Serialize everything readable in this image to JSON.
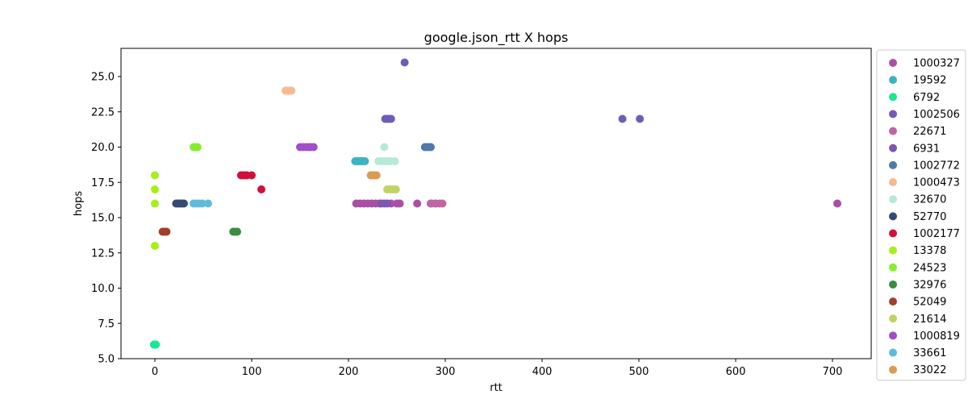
{
  "chart_data": {
    "type": "scatter",
    "title": "google.json_rtt X hops",
    "xlabel": "rtt",
    "ylabel": "hops",
    "xlim": [
      -35,
      740
    ],
    "ylim": [
      5.0,
      27.0
    ],
    "xticks": [
      0,
      100,
      200,
      300,
      400,
      500,
      600,
      700
    ],
    "xtick_labels": [
      "0",
      "100",
      "200",
      "300",
      "400",
      "500",
      "600",
      "700"
    ],
    "yticks": [
      5.0,
      7.5,
      10.0,
      12.5,
      15.0,
      17.5,
      20.0,
      22.5,
      25.0
    ],
    "ytick_labels": [
      "5.0",
      "7.5",
      "10.0",
      "12.5",
      "15.0",
      "17.5",
      "20.0",
      "22.5",
      "25.0"
    ],
    "grid": false,
    "legend_position": "outside-right",
    "series": [
      {
        "name": "1000327",
        "color": "#aa4fa5",
        "points": [
          [
            208,
            16
          ],
          [
            212,
            16
          ],
          [
            216,
            16
          ],
          [
            220,
            16
          ],
          [
            224,
            16
          ],
          [
            228,
            16
          ],
          [
            232,
            16
          ],
          [
            244,
            16
          ],
          [
            250,
            16
          ],
          [
            253,
            16
          ],
          [
            271,
            16
          ],
          [
            285,
            16
          ],
          [
            290,
            16
          ],
          [
            705,
            16
          ]
        ]
      },
      {
        "name": "19592",
        "color": "#3bb3c3",
        "points": [
          [
            207,
            19
          ],
          [
            209,
            19
          ],
          [
            211,
            19
          ],
          [
            213,
            19
          ],
          [
            215,
            19
          ],
          [
            217,
            19
          ]
        ]
      },
      {
        "name": "6792",
        "color": "#19e894",
        "points": [
          [
            -1,
            6
          ],
          [
            0,
            6
          ],
          [
            1,
            6
          ]
        ]
      },
      {
        "name": "1002506",
        "color": "#6f5cb8",
        "points": [
          [
            238,
            22
          ],
          [
            240,
            22
          ],
          [
            242,
            22
          ],
          [
            244,
            22
          ],
          [
            258,
            26
          ],
          [
            483,
            22
          ],
          [
            501,
            22
          ]
        ]
      },
      {
        "name": "22671",
        "color": "#c065a1",
        "points": [
          [
            286,
            16
          ],
          [
            290,
            16
          ],
          [
            294,
            16
          ],
          [
            297,
            16
          ]
        ]
      },
      {
        "name": "6931",
        "color": "#7d57b0",
        "points": [
          [
            234,
            16
          ],
          [
            237,
            16
          ],
          [
            240,
            16
          ]
        ]
      },
      {
        "name": "1002772",
        "color": "#4f79a9",
        "points": [
          [
            279,
            20
          ],
          [
            281,
            20
          ],
          [
            283,
            20
          ],
          [
            285,
            20
          ]
        ]
      },
      {
        "name": "1000473",
        "color": "#f8b98f",
        "points": [
          [
            135,
            24
          ],
          [
            137,
            24
          ],
          [
            139,
            24
          ],
          [
            141,
            24
          ]
        ]
      },
      {
        "name": "32670",
        "color": "#b5ead5",
        "points": [
          [
            237,
            20
          ],
          [
            231,
            19
          ],
          [
            234,
            19
          ],
          [
            237,
            19
          ],
          [
            240,
            19
          ],
          [
            243,
            19
          ],
          [
            248,
            19
          ]
        ]
      },
      {
        "name": "52770",
        "color": "#344c74",
        "points": [
          [
            22,
            16
          ],
          [
            24,
            16
          ],
          [
            26,
            16
          ],
          [
            28,
            16
          ],
          [
            30,
            16
          ]
        ]
      },
      {
        "name": "1002177",
        "color": "#d2103c",
        "points": [
          [
            89,
            18
          ],
          [
            91,
            18
          ],
          [
            93,
            18
          ],
          [
            95,
            18
          ],
          [
            100,
            18
          ],
          [
            110,
            17
          ]
        ]
      },
      {
        "name": "13378",
        "color": "#a6ef18",
        "points": [
          [
            0,
            18
          ],
          [
            0,
            17
          ],
          [
            0,
            16
          ],
          [
            0,
            13
          ]
        ]
      },
      {
        "name": "24523",
        "color": "#84ee2c",
        "points": [
          [
            40,
            20
          ],
          [
            42,
            20
          ],
          [
            44,
            20
          ]
        ]
      },
      {
        "name": "32976",
        "color": "#3b8d3f",
        "points": [
          [
            81,
            14
          ],
          [
            83,
            14
          ],
          [
            85,
            14
          ]
        ]
      },
      {
        "name": "52049",
        "color": "#a13e2b",
        "points": [
          [
            8,
            14
          ],
          [
            10,
            14
          ],
          [
            12,
            14
          ]
        ]
      },
      {
        "name": "21614",
        "color": "#c2d364",
        "points": [
          [
            240,
            17
          ],
          [
            243,
            17
          ],
          [
            246,
            17
          ],
          [
            249,
            17
          ]
        ]
      },
      {
        "name": "1000819",
        "color": "#a04ec9",
        "points": [
          [
            150,
            20
          ],
          [
            153,
            20
          ],
          [
            156,
            20
          ],
          [
            159,
            20
          ],
          [
            161,
            20
          ],
          [
            164,
            20
          ]
        ]
      },
      {
        "name": "33661",
        "color": "#5fbbdd",
        "points": [
          [
            40,
            16
          ],
          [
            43,
            16
          ],
          [
            46,
            16
          ],
          [
            49,
            16
          ],
          [
            55,
            16
          ]
        ]
      },
      {
        "name": "33022",
        "color": "#dd9a52",
        "points": [
          [
            223,
            18
          ],
          [
            225,
            18
          ],
          [
            227,
            18
          ],
          [
            229,
            18
          ]
        ]
      }
    ]
  }
}
